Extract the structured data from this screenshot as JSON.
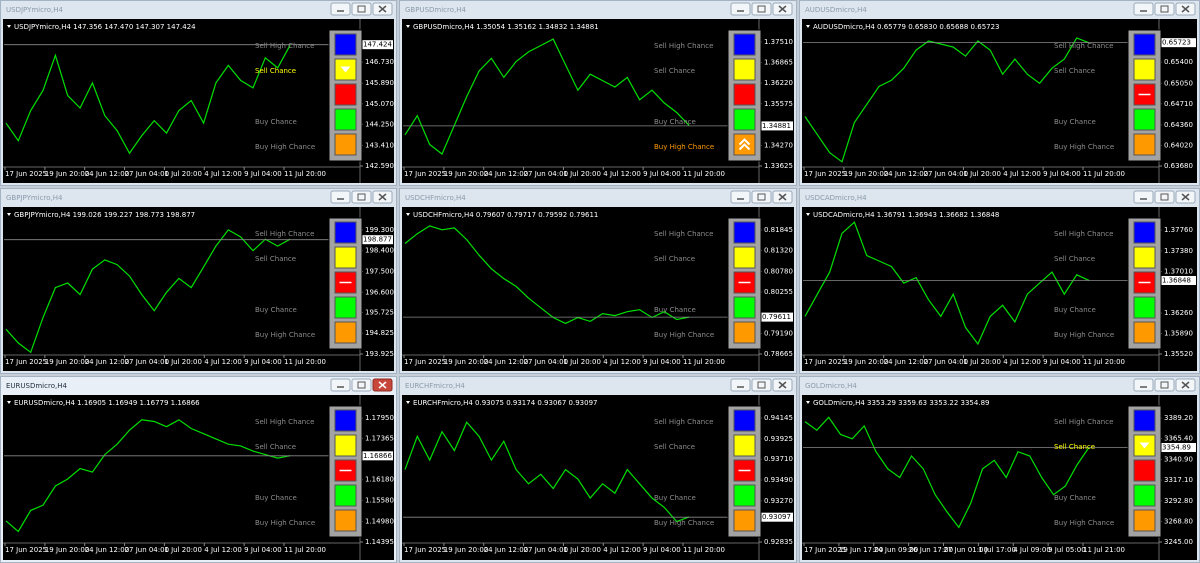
{
  "signals": [
    "Sell High Chance",
    "Sell Chance",
    "Buy Chance",
    "Buy High Chance"
  ],
  "button_colors": [
    "#0000ff",
    "#ffff00",
    "#ff0000",
    "#00ff00",
    "#ff9900"
  ],
  "windows": [
    {
      "title": "USDJPYmicro,H4",
      "header": "USDJPYmicro,H4  147.356 147.470 147.307 147.424",
      "current": 147.424,
      "ylim": [
        142.59,
        147.69
      ],
      "ticks": [
        {
          "value": 146.73,
          "label": "146.730"
        },
        {
          "value": 145.89,
          "label": "145.890"
        },
        {
          "value": 145.07,
          "label": "145.070"
        },
        {
          "value": 144.25,
          "label": "144.250"
        },
        {
          "value": 143.41,
          "label": "143.410"
        },
        {
          "value": 142.59,
          "label": "142.590"
        }
      ],
      "dates": [
        "17 Jun 2025",
        "19 Jun 20:00",
        "24 Jun 12:00",
        "27 Jun 04:00",
        "1 Jul 20:00",
        "4 Jul 12:00",
        "9 Jul 04:00",
        "11 Jul 20:00"
      ],
      "closes": [
        144.3,
        143.6,
        144.8,
        145.6,
        147.0,
        145.4,
        144.9,
        145.9,
        144.6,
        144.0,
        143.1,
        143.8,
        144.4,
        143.9,
        144.8,
        145.2,
        144.3,
        145.9,
        146.6,
        146.0,
        145.7,
        146.9,
        146.5,
        147.4
      ],
      "active_signal": 1,
      "icon": "down",
      "icon_button": 1
    },
    {
      "title": "GBPUSDmicro,H4",
      "header": "GBPUSDmicro,H4  1.35054 1.35162 1.34832 1.34881",
      "current": 1.34881,
      "ylim": [
        1.33625,
        1.37635
      ],
      "ticks": [
        {
          "value": 1.3751,
          "label": "1.37510"
        },
        1.36865,
        {
          "value": 1.3622,
          "label": "1.36220"
        },
        1.35575,
        {
          "value": 1.3427,
          "label": "1.34270"
        },
        1.33625
      ],
      "dates": [
        "17 Jun 2025",
        "19 Jun 20:00",
        "24 Jun 12:00",
        "27 Jun 04:00",
        "1 Jul 20:00",
        "4 Jul 12:00",
        "9 Jul 04:00",
        "11 Jul 20:00"
      ],
      "closes": [
        1.346,
        1.352,
        1.343,
        1.34,
        1.349,
        1.358,
        1.366,
        1.37,
        1.364,
        1.369,
        1.372,
        1.374,
        1.376,
        1.368,
        1.36,
        1.365,
        1.363,
        1.361,
        1.364,
        1.357,
        1.36,
        1.356,
        1.353,
        1.349
      ],
      "active_signal": 3,
      "icon": "up",
      "icon_button": 4
    },
    {
      "title": "AUDUSDmicro,H4",
      "header": "AUDUSDmicro,H4  0.65779 0.65830 0.65688 0.65723",
      "current": 0.65723,
      "ylim": [
        0.6368,
        0.658
      ],
      "ticks": [
        {
          "value": 0.654,
          "label": "0.65400"
        },
        {
          "value": 0.6505,
          "label": "0.65050"
        },
        {
          "value": 0.6471,
          "label": "0.64710"
        },
        {
          "value": 0.6436,
          "label": "0.64360"
        },
        {
          "value": 0.6402,
          "label": "0.64020"
        },
        {
          "value": 0.6368,
          "label": "0.63680"
        }
      ],
      "dates": [
        "17 Jun 2025",
        "19 Jun 20:00",
        "24 Jun 12:00",
        "27 Jun 04:00",
        "1 Jul 20:00",
        "4 Jul 12:00",
        "9 Jul 04:00",
        "11 Jul 20:00"
      ],
      "closes": [
        0.645,
        0.642,
        0.639,
        0.6375,
        0.644,
        0.647,
        0.65,
        0.651,
        0.653,
        0.656,
        0.6575,
        0.657,
        0.6565,
        0.655,
        0.6575,
        0.656,
        0.652,
        0.6545,
        0.652,
        0.6505,
        0.653,
        0.6545,
        0.658,
        0.6572
      ],
      "icon": "dash",
      "icon_button": 2
    },
    {
      "title": "GBPJPYmicro,H4",
      "header": "GBPJPYmicro,H4  199.026 199.227 198.773 198.877",
      "current": 198.877,
      "ylim": [
        193.925,
        199.47
      ],
      "ticks": [
        {
          "value": 199.3,
          "label": "199.300"
        },
        {
          "value": 198.4,
          "label": "198.400"
        },
        {
          "value": 197.5,
          "label": "197.500"
        },
        {
          "value": 196.6,
          "label": "196.600"
        },
        195.725,
        194.825,
        193.925
      ],
      "dates": [
        "17 Jun 2025",
        "19 Jun 20:00",
        "24 Jun 12:00",
        "27 Jun 04:00",
        "1 Jul 20:00",
        "4 Jul 12:00",
        "9 Jul 04:00",
        "11 Jul 20:00"
      ],
      "closes": [
        195.0,
        194.4,
        194.0,
        195.5,
        196.8,
        197.0,
        196.5,
        197.6,
        198.0,
        197.8,
        197.3,
        196.5,
        195.8,
        196.6,
        197.2,
        196.8,
        197.7,
        198.6,
        199.3,
        199.0,
        198.4,
        198.9,
        198.6,
        198.9
      ],
      "icon": "dash",
      "icon_button": 2
    },
    {
      "title": "USDCHFmicro,H4",
      "header": "USDCHFmicro,H4  0.79607 0.79717 0.79592 0.79611",
      "current": 0.79611,
      "ylim": [
        0.78665,
        0.81948
      ],
      "ticks": [
        0.81845,
        {
          "value": 0.8132,
          "label": "0.81320"
        },
        {
          "value": 0.8078,
          "label": "0.80780"
        },
        0.80255,
        {
          "value": 0.7919,
          "label": "0.79190"
        },
        0.78665
      ],
      "dates": [
        "17 Jun 2025",
        "19 Jun 20:00",
        "24 Jun 12:00",
        "27 Jun 04:00",
        "1 Jul 20:00",
        "4 Jul 12:00",
        "9 Jul 04:00",
        "11 Jul 20:00"
      ],
      "closes": [
        0.815,
        0.8175,
        0.8195,
        0.8185,
        0.819,
        0.816,
        0.812,
        0.8085,
        0.806,
        0.804,
        0.801,
        0.7985,
        0.796,
        0.7945,
        0.796,
        0.795,
        0.797,
        0.7965,
        0.7975,
        0.798,
        0.796,
        0.7975,
        0.7955,
        0.7961
      ],
      "icon": "dash",
      "icon_button": 2
    },
    {
      "title": "USDCADmicro,H4",
      "header": "USDCADmicro,H4  1.36791 1.36943 1.36682 1.36848",
      "current": 1.36848,
      "ylim": [
        1.3552,
        1.37832
      ],
      "ticks": [
        {
          "value": 1.3776,
          "label": "1.37760"
        },
        {
          "value": 1.3738,
          "label": "1.37380"
        },
        {
          "value": 1.3701,
          "label": "1.37010"
        },
        {
          "value": 1.3626,
          "label": "1.36260"
        },
        {
          "value": 1.3589,
          "label": "1.35890"
        },
        {
          "value": 1.3552,
          "label": "1.35520"
        }
      ],
      "dates": [
        "17 Jun 2025",
        "19 Jun 20:00",
        "24 Jun 12:00",
        "27 Jun 04:00",
        "1 Jul 20:00",
        "4 Jul 12:00",
        "9 Jul 04:00",
        "11 Jul 20:00"
      ],
      "closes": [
        1.362,
        1.366,
        1.37,
        1.377,
        1.379,
        1.373,
        1.372,
        1.371,
        1.368,
        1.369,
        1.365,
        1.362,
        1.366,
        1.36,
        1.357,
        1.362,
        1.364,
        1.361,
        1.366,
        1.368,
        1.37,
        1.366,
        1.3695,
        1.3685
      ],
      "icon": "dash",
      "icon_button": 2
    },
    {
      "title": "EURUSDmicro,H4",
      "header": "EURUSDmicro,H4  1.16905 1.16949 1.16779 1.16866",
      "current": 1.16866,
      "active": true,
      "ylim": [
        1.14395,
        1.18065
      ],
      "ticks": [
        {
          "value": 1.1795,
          "label": "1.17950"
        },
        1.17365,
        {
          "value": 1.1618,
          "label": "1.16180"
        },
        {
          "value": 1.1558,
          "label": "1.15580"
        },
        {
          "value": 1.1498,
          "label": "1.14980"
        },
        1.14395
      ],
      "dates": [
        "17 Jun 2025",
        "19 Jun 20:00",
        "24 Jun 12:00",
        "27 Jun 04:00",
        "1 Jul 20:00",
        "4 Jul 12:00",
        "9 Jul 04:00",
        "11 Jul 20:00"
      ],
      "closes": [
        1.15,
        1.147,
        1.153,
        1.1545,
        1.16,
        1.162,
        1.165,
        1.164,
        1.169,
        1.172,
        1.176,
        1.179,
        1.1785,
        1.177,
        1.179,
        1.1765,
        1.175,
        1.1735,
        1.172,
        1.1715,
        1.17,
        1.169,
        1.168,
        1.1687
      ],
      "icon": "dash",
      "icon_button": 2
    },
    {
      "title": "EURCHFmicro,H4",
      "header": "EURCHFmicro,H4  0.93075 0.93174 0.93067 0.93097",
      "current": 0.93097,
      "ylim": [
        0.92835,
        0.94187
      ],
      "ticks": [
        0.94145,
        0.93925,
        {
          "value": 0.9371,
          "label": "0.93710"
        },
        {
          "value": 0.9349,
          "label": "0.93490"
        },
        {
          "value": 0.9327,
          "label": "0.93270"
        },
        0.92835
      ],
      "dates": [
        "17 Jun 2025",
        "19 Jun 20:00",
        "24 Jun 12:00",
        "27 Jun 04:00",
        "1 Jul 20:00",
        "4 Jul 12:00",
        "9 Jul 04:00",
        "11 Jul 20:00"
      ],
      "closes": [
        0.936,
        0.9395,
        0.937,
        0.94,
        0.938,
        0.941,
        0.9395,
        0.937,
        0.939,
        0.936,
        0.9345,
        0.9355,
        0.934,
        0.936,
        0.935,
        0.933,
        0.9345,
        0.9335,
        0.936,
        0.9345,
        0.933,
        0.932,
        0.9305,
        0.931
      ],
      "icon": "dash",
      "icon_button": 2
    },
    {
      "title": "GOLDmicro,H4",
      "header": "GOLDmicro,H4  3353.29 3359.63 3353.22 3354.89",
      "current": 3354.89,
      "ylim": [
        3245,
        3393.85
      ],
      "ticks": [
        {
          "value": 3389.2,
          "label": "3389.20"
        },
        {
          "value": 3365.4,
          "label": "3365.40"
        },
        {
          "value": 3340.9,
          "label": "3340.90"
        },
        {
          "value": 3317.1,
          "label": "3317.10"
        },
        {
          "value": 3292.8,
          "label": "3292.80"
        },
        {
          "value": 3268.8,
          "label": "3268.80"
        },
        {
          "value": 3245,
          "label": "3245.00"
        }
      ],
      "dates": [
        "17 Jun 2025",
        "19 Jun 17:00",
        "24 Jun 09:00",
        "26 Jun 17:00",
        "27 Jun 01:00",
        "1 Jul 17:00",
        "4 Jul 09:00",
        "9 Jul 05:00",
        "11 Jul 21:00"
      ],
      "closes": [
        3385,
        3375,
        3390,
        3370,
        3365,
        3380,
        3350,
        3330,
        3320,
        3345,
        3330,
        3300,
        3280,
        3262,
        3290,
        3330,
        3340,
        3320,
        3350,
        3345,
        3320,
        3300,
        3310,
        3335,
        3355
      ],
      "active_signal": 1,
      "icon": "down",
      "icon_button": 1
    }
  ]
}
